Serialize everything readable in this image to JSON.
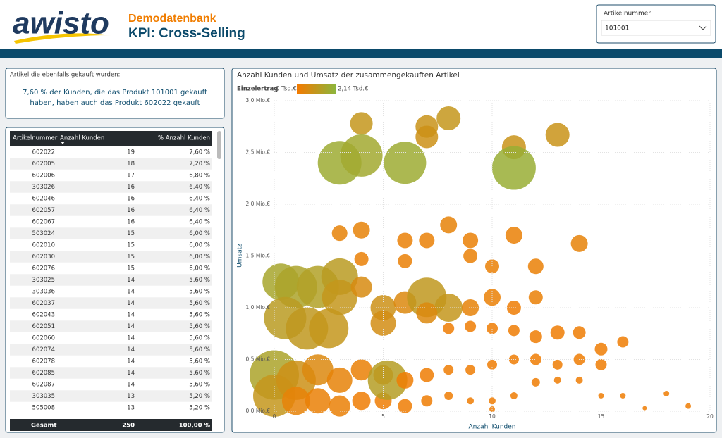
{
  "header": {
    "logo": "awisto",
    "subtitle": "Demodatenbank",
    "title": "KPI: Cross-Selling"
  },
  "slicer": {
    "label": "Artikelnummer",
    "value": "101001"
  },
  "card": {
    "title": "Artikel die ebenfalls gekauft wurden:",
    "lines": [
      "7,60 % der Kunden, die das Produkt 101001 gekauft",
      "haben, haben auch das Produkt 602022 gekauft"
    ]
  },
  "table": {
    "columns": [
      "Artikelnummer",
      "Anzahl Kunden",
      "% Anzahl Kunden"
    ],
    "rows": [
      [
        "602022",
        "19",
        "7,60 %"
      ],
      [
        "602005",
        "18",
        "7,20 %"
      ],
      [
        "602006",
        "17",
        "6,80 %"
      ],
      [
        "303026",
        "16",
        "6,40 %"
      ],
      [
        "602046",
        "16",
        "6,40 %"
      ],
      [
        "602057",
        "16",
        "6,40 %"
      ],
      [
        "602067",
        "16",
        "6,40 %"
      ],
      [
        "503024",
        "15",
        "6,00 %"
      ],
      [
        "602010",
        "15",
        "6,00 %"
      ],
      [
        "602030",
        "15",
        "6,00 %"
      ],
      [
        "602076",
        "15",
        "6,00 %"
      ],
      [
        "303025",
        "14",
        "5,60 %"
      ],
      [
        "303036",
        "14",
        "5,60 %"
      ],
      [
        "602037",
        "14",
        "5,60 %"
      ],
      [
        "602043",
        "14",
        "5,60 %"
      ],
      [
        "602051",
        "14",
        "5,60 %"
      ],
      [
        "602060",
        "14",
        "5,60 %"
      ],
      [
        "602074",
        "14",
        "5,60 %"
      ],
      [
        "602078",
        "14",
        "5,60 %"
      ],
      [
        "602085",
        "14",
        "5,60 %"
      ],
      [
        "602087",
        "14",
        "5,60 %"
      ],
      [
        "303035",
        "13",
        "5,20 %"
      ],
      [
        "505008",
        "13",
        "5,20 %"
      ]
    ],
    "total": [
      "Gesamt",
      "250",
      "100,00 %"
    ]
  },
  "chart_data": {
    "type": "scatter",
    "title": "Anzahl Kunden und Umsatz der zusammengekauften Artikel",
    "x_label": "Anzahl Kunden",
    "y_label": "Umsatz",
    "color_scale": {
      "title": "Einzelertrag",
      "min": 0,
      "max": 2.14,
      "min_label": "0 Tsd.€",
      "max_label": "2,14 Tsd.€",
      "colors": [
        "#f47a00",
        "#8db53c"
      ]
    },
    "xlim": [
      0,
      20
    ],
    "xticks": [
      0,
      5,
      10,
      15,
      20
    ],
    "ylim": [
      0,
      3
    ],
    "yticks": [
      {
        "value": 0,
        "label": "0,0 Mio.€"
      },
      {
        "value": 0.5,
        "label": "0,5 Mio.€"
      },
      {
        "value": 1,
        "label": "1,0 Mio.€"
      },
      {
        "value": 1.5,
        "label": "1,5 Mio.€"
      },
      {
        "value": 2,
        "label": "2,0 Mio.€"
      },
      {
        "value": 2.5,
        "label": "2,5 Mio.€"
      },
      {
        "value": 3,
        "label": "3,0 Mio.€"
      }
    ],
    "grid": true,
    "x": [
      4,
      7,
      7,
      8,
      11,
      13,
      3,
      4,
      6,
      11,
      3,
      4,
      6,
      7,
      8,
      9,
      11,
      14,
      4,
      6,
      9,
      10,
      12,
      0.3,
      1,
      2,
      3,
      3,
      4,
      5,
      6,
      7,
      8,
      9,
      10,
      11,
      12,
      0.5,
      1.5,
      2.5,
      5,
      7,
      8,
      9,
      10,
      11,
      12,
      13,
      14,
      15,
      16,
      0,
      0,
      1,
      1,
      2,
      2,
      3,
      3,
      4,
      4,
      5,
      5,
      5.2,
      6,
      6,
      7,
      7,
      8,
      8,
      9,
      9,
      10,
      10,
      11,
      11,
      12,
      12,
      13,
      13,
      14,
      14,
      15,
      15,
      16,
      17,
      18,
      19,
      10
    ],
    "y": [
      2.78,
      2.75,
      2.65,
      2.83,
      2.55,
      2.67,
      2.4,
      2.47,
      2.4,
      2.35,
      1.72,
      1.75,
      1.65,
      1.65,
      1.8,
      1.65,
      1.7,
      1.62,
      1.47,
      1.45,
      1.5,
      1.4,
      1.4,
      1.25,
      1.2,
      1.2,
      1.3,
      1.1,
      1.2,
      1.0,
      1.05,
      1.1,
      1.0,
      1.0,
      1.1,
      1.0,
      1.1,
      0.9,
      0.8,
      0.8,
      0.85,
      0.95,
      0.8,
      0.82,
      0.8,
      0.78,
      0.72,
      0.76,
      0.76,
      0.6,
      0.67,
      0.35,
      0.15,
      0.3,
      0.1,
      0.4,
      0.1,
      0.3,
      0.05,
      0.4,
      0.1,
      0.35,
      0.1,
      0.3,
      0.3,
      0.05,
      0.35,
      0.1,
      0.4,
      0.15,
      0.4,
      0.1,
      0.45,
      0.1,
      0.5,
      0.15,
      0.5,
      0.28,
      0.45,
      0.3,
      0.5,
      0.3,
      0.45,
      0.15,
      0.15,
      0.03,
      0.17,
      0.05,
      0.02
    ],
    "sizes": [
      16,
      16,
      16,
      17,
      17,
      17,
      31,
      30,
      30,
      31,
      11,
      12,
      11,
      11,
      12,
      11,
      12,
      12,
      10,
      10,
      10,
      10,
      11,
      26,
      30,
      30,
      26,
      25,
      15,
      18,
      16,
      28,
      20,
      12,
      12,
      10,
      10,
      30,
      30,
      28,
      18,
      15,
      8,
      8,
      8,
      8,
      9,
      10,
      9,
      9,
      8,
      35,
      30,
      28,
      20,
      22,
      18,
      18,
      15,
      15,
      13,
      14,
      12,
      28,
      12,
      10,
      10,
      8,
      7,
      6,
      7,
      5,
      7,
      5,
      7,
      5,
      8,
      6,
      7,
      5,
      8,
      5,
      8,
      4,
      4,
      3,
      4,
      4,
      4
    ],
    "einzelertrag": [
      1.0,
      0.9,
      0.8,
      1.0,
      0.9,
      0.9,
      1.8,
      1.7,
      1.8,
      1.9,
      0.3,
      0.3,
      0.2,
      0.2,
      0.3,
      0.2,
      0.2,
      0.3,
      0.2,
      0.2,
      0.2,
      0.2,
      0.2,
      1.6,
      1.5,
      1.4,
      1.2,
      1.0,
      0.6,
      0.8,
      0.5,
      1.1,
      1.0,
      0.3,
      0.2,
      0.1,
      0.2,
      1.2,
      1.1,
      1.0,
      0.7,
      0.5,
      0.1,
      0.1,
      0.1,
      0.1,
      0.1,
      0.1,
      0.1,
      0.1,
      0.1,
      1.5,
      1.0,
      0.8,
      0.3,
      0.5,
      0.2,
      0.3,
      0.2,
      0.2,
      0.1,
      0.2,
      0.1,
      1.3,
      0.1,
      0.1,
      0.1,
      0.1,
      0.1,
      0.1,
      0.1,
      0.1,
      0.1,
      0.1,
      0.1,
      0.1,
      0.1,
      0.1,
      0.1,
      0.1,
      0.1,
      0.1,
      0.1,
      0.1,
      0.1,
      0.1,
      0.1,
      0.1,
      0.1
    ]
  }
}
